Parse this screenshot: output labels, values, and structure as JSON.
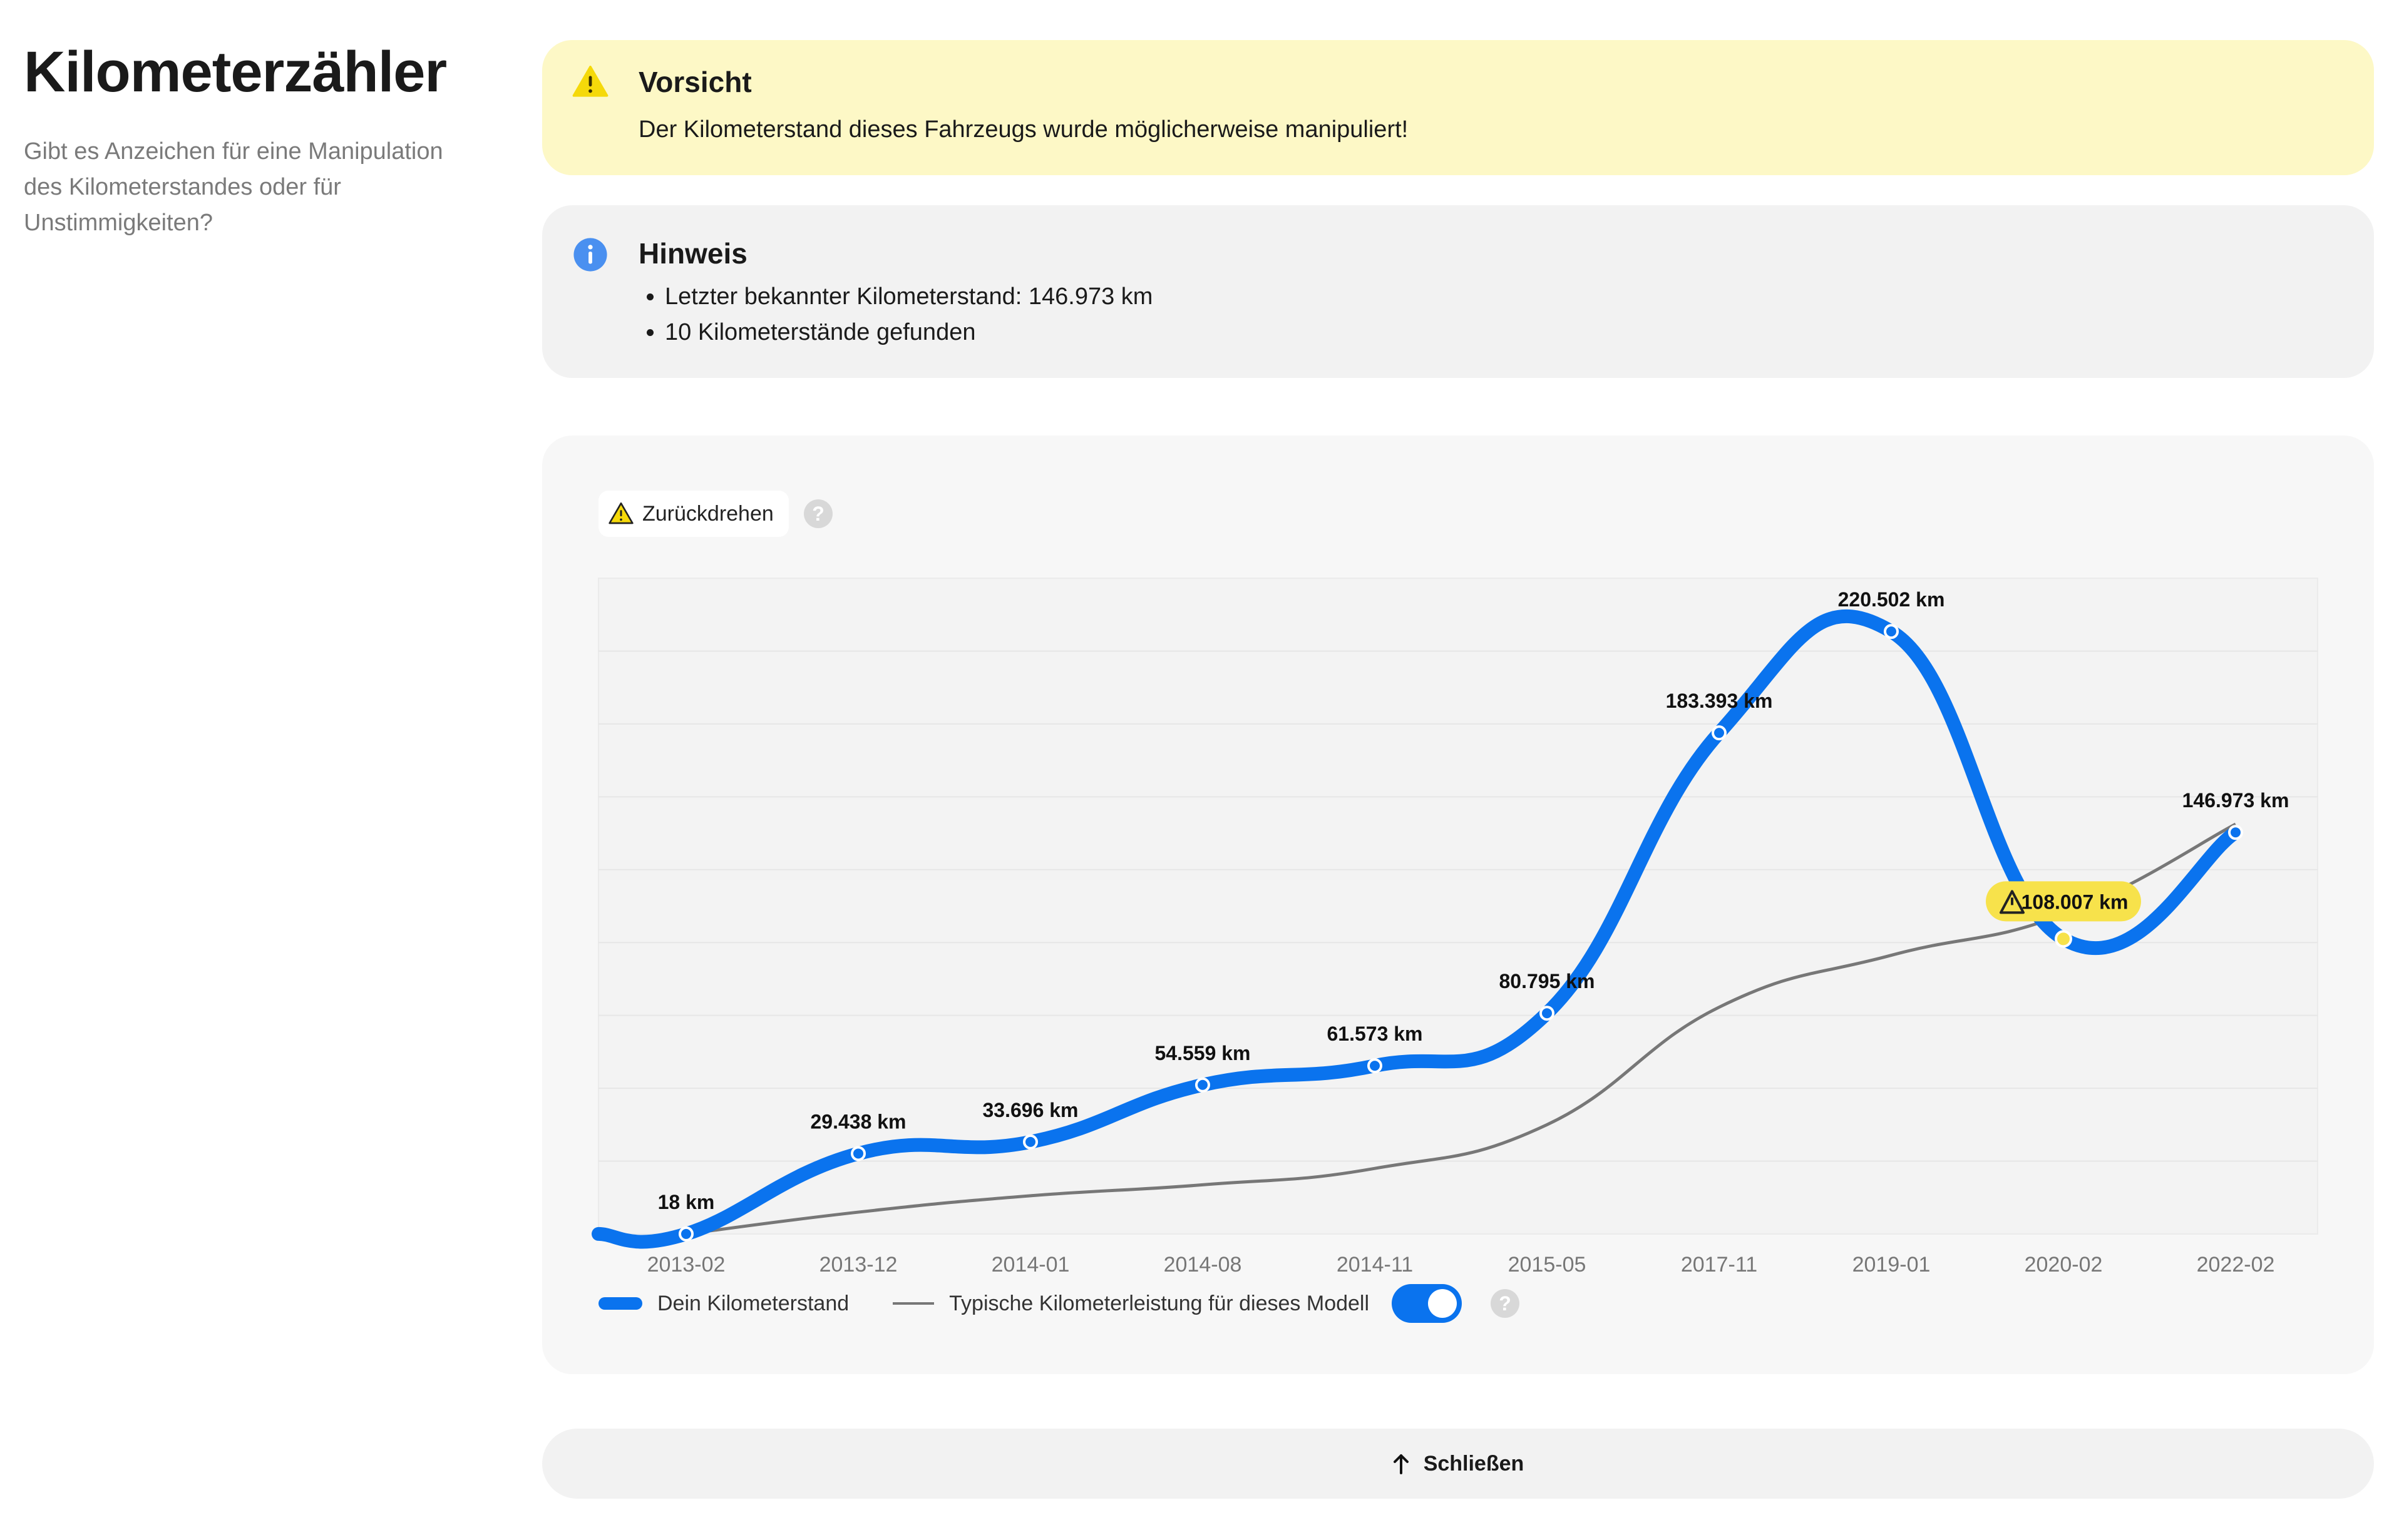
{
  "page": {
    "title": "Kilometerzähler",
    "subtitle": "Gibt es Anzeichen für eine Manipulation des Kilometerstandes oder für Unstimmigkeiten?"
  },
  "warning": {
    "icon": "warning-triangle-icon",
    "title": "Vorsicht",
    "text": "Der Kilometerstand dieses Fahrzeugs wurde möglicherweise manipuliert!",
    "accent": "#f5d90a"
  },
  "info": {
    "icon": "info-icon",
    "title": "Hinweis",
    "items": [
      "Letzter bekannter Kilometerstand: 146.973 km",
      "10 Kilometerstände gefunden"
    ],
    "accent": "#4a90f0"
  },
  "chart": {
    "chip_label": "Zurückdrehen",
    "help_symbol": "?",
    "legend_mine": "Dein Kilometerstand",
    "legend_typical": "Typische Kilometerleistung für dieses Modell",
    "typical_toggle_on": true,
    "colors": {
      "mine": "#0a73ee",
      "typical": "#777777",
      "alert": "#f7e24b"
    }
  },
  "chart_data": {
    "type": "line",
    "categories": [
      "2013-02",
      "2013-12",
      "2014-01",
      "2014-08",
      "2014-11",
      "2015-05",
      "2017-11",
      "2019-01",
      "2020-02",
      "2022-02"
    ],
    "series": [
      {
        "name": "Dein Kilometerstand",
        "values": [
          18,
          29438,
          33696,
          54559,
          61573,
          80795,
          183393,
          220502,
          108007,
          146973
        ],
        "labels": [
          "18 km",
          "29.438 km",
          "33.696 km",
          "54.559 km",
          "61.573 km",
          "80.795 km",
          "183.393 km",
          "220.502 km",
          "108.007 km",
          "146.973 km"
        ],
        "flagged_index": 8
      },
      {
        "name": "Typische Kilometerleistung für dieses Modell",
        "values": [
          0,
          8000,
          14000,
          18000,
          24000,
          40000,
          83000,
          102000,
          117000,
          150000
        ]
      }
    ],
    "ylim": [
      0,
      240000
    ],
    "grid": true
  },
  "footer": {
    "close_label": "Schließen",
    "close_icon": "arrow-up-icon"
  }
}
